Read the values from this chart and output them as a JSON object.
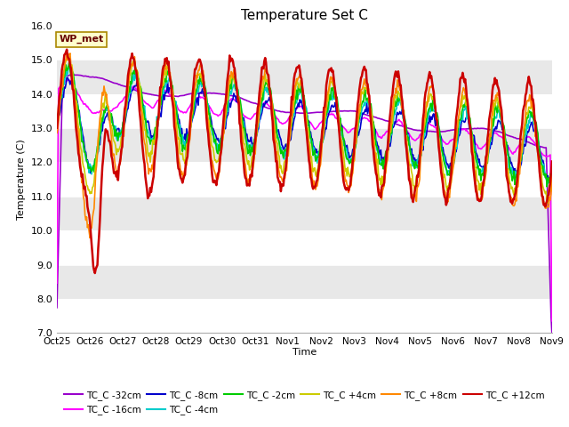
{
  "title": "Temperature Set C",
  "xlabel": "Time",
  "ylabel": "Temperature (C)",
  "ylim": [
    7.0,
    16.0
  ],
  "yticks": [
    7.0,
    8.0,
    9.0,
    10.0,
    11.0,
    12.0,
    13.0,
    14.0,
    15.0,
    16.0
  ],
  "xtick_labels": [
    "Oct 25",
    "Oct 26",
    "Oct 27",
    "Oct 28",
    "Oct 29",
    "Oct 30",
    "Oct 31",
    "Nov 1",
    "Nov 2",
    "Nov 3",
    "Nov 4",
    "Nov 5",
    "Nov 6",
    "Nov 7",
    "Nov 8",
    "Nov 9"
  ],
  "wp_met_label": "WP_met",
  "series": {
    "TC_C -32cm": {
      "color": "#9900cc",
      "lw": 1.2
    },
    "TC_C -16cm": {
      "color": "#ff00ff",
      "lw": 1.2
    },
    "TC_C -8cm": {
      "color": "#0000cc",
      "lw": 1.2
    },
    "TC_C -4cm": {
      "color": "#00cccc",
      "lw": 1.2
    },
    "TC_C -2cm": {
      "color": "#00cc00",
      "lw": 1.2
    },
    "TC_C +4cm": {
      "color": "#cccc00",
      "lw": 1.2
    },
    "TC_C +8cm": {
      "color": "#ff8800",
      "lw": 1.2
    },
    "TC_C +12cm": {
      "color": "#cc0000",
      "lw": 1.8
    }
  },
  "legend_order": [
    "TC_C -32cm",
    "TC_C -16cm",
    "TC_C -8cm",
    "TC_C -4cm",
    "TC_C -2cm",
    "TC_C +4cm",
    "TC_C +8cm",
    "TC_C +12cm"
  ],
  "band_colors": [
    "#ffffff",
    "#e8e8e8"
  ],
  "fig_bg": "#ffffff",
  "plot_bg": "#e8e8e8"
}
